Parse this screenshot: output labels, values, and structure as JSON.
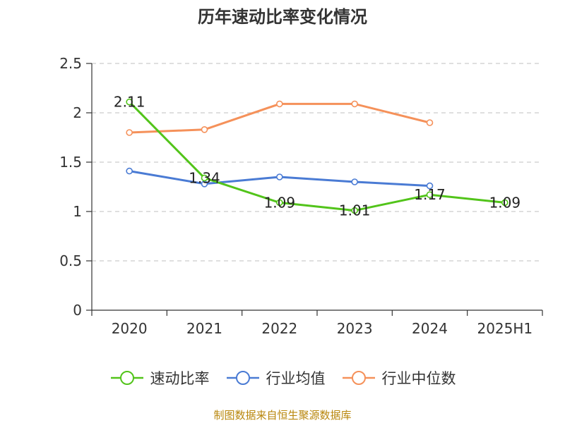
{
  "chart_data": {
    "type": "line",
    "title": "历年速动比率变化情况",
    "categories": [
      "2020",
      "2021",
      "2022",
      "2023",
      "2024",
      "2025H1"
    ],
    "ylim": [
      0,
      2.5
    ],
    "yticks": [
      "0",
      "0.5",
      "1",
      "1.5",
      "2",
      "2.5"
    ],
    "grid": true,
    "legend_position": "bottom",
    "series": [
      {
        "name": "速动比率",
        "color": "#52c41a",
        "values": [
          2.11,
          1.34,
          1.09,
          1.01,
          1.17,
          1.09
        ],
        "labels": [
          "2.11",
          "1.34",
          "1.09",
          "1.01",
          "1.17",
          "1.09"
        ]
      },
      {
        "name": "行业均值",
        "color": "#4a7bd4",
        "values": [
          1.41,
          1.28,
          1.35,
          1.3,
          1.26,
          null
        ]
      },
      {
        "name": "行业中位数",
        "color": "#f5915a",
        "values": [
          1.8,
          1.83,
          2.09,
          2.09,
          1.9,
          null
        ]
      }
    ]
  },
  "source_note": "制图数据来自恒生聚源数据库"
}
